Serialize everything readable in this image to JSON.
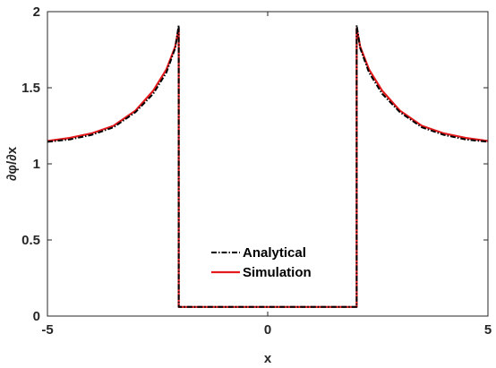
{
  "chart_data": {
    "type": "line",
    "xlabel": "x",
    "ylabel": "∂φ/∂x",
    "xlim": [
      -5,
      5
    ],
    "ylim": [
      0,
      2
    ],
    "xticks": [
      "-5",
      "0",
      "5"
    ],
    "yticks": [
      "0",
      "0.5",
      "1",
      "1.5",
      "2"
    ],
    "grid": false,
    "legend_position": "center",
    "colors": {
      "analytical": "#000000",
      "simulation": "#e41a1c"
    },
    "series": [
      {
        "name": "Analytical",
        "style": "dash-dot",
        "x": [
          -5,
          -4.5,
          -4,
          -3.5,
          -3,
          -2.6,
          -2.3,
          -2.1,
          -2.02,
          -2.02,
          -1.98,
          -1.98,
          1.98,
          1.98,
          2.02,
          2.02,
          2.1,
          2.3,
          2.6,
          3,
          3.5,
          4,
          4.5,
          5
        ],
        "y": [
          1.145,
          1.16,
          1.19,
          1.24,
          1.34,
          1.46,
          1.6,
          1.76,
          1.91,
          0.06,
          0.06,
          0.06,
          0.06,
          0.06,
          0.06,
          1.91,
          1.76,
          1.6,
          1.46,
          1.34,
          1.24,
          1.19,
          1.16,
          1.145
        ]
      },
      {
        "name": "Simulation",
        "style": "solid",
        "x": [
          -5,
          -4.5,
          -4,
          -3.5,
          -3,
          -2.6,
          -2.3,
          -2.1,
          -2.02,
          -2.02,
          2.02,
          2.02,
          2.1,
          2.3,
          2.6,
          3,
          3.5,
          4,
          4.5,
          5
        ],
        "y": [
          1.15,
          1.17,
          1.2,
          1.25,
          1.35,
          1.48,
          1.62,
          1.77,
          1.89,
          0.06,
          0.06,
          1.89,
          1.77,
          1.62,
          1.48,
          1.35,
          1.25,
          1.2,
          1.17,
          1.15
        ]
      }
    ]
  }
}
